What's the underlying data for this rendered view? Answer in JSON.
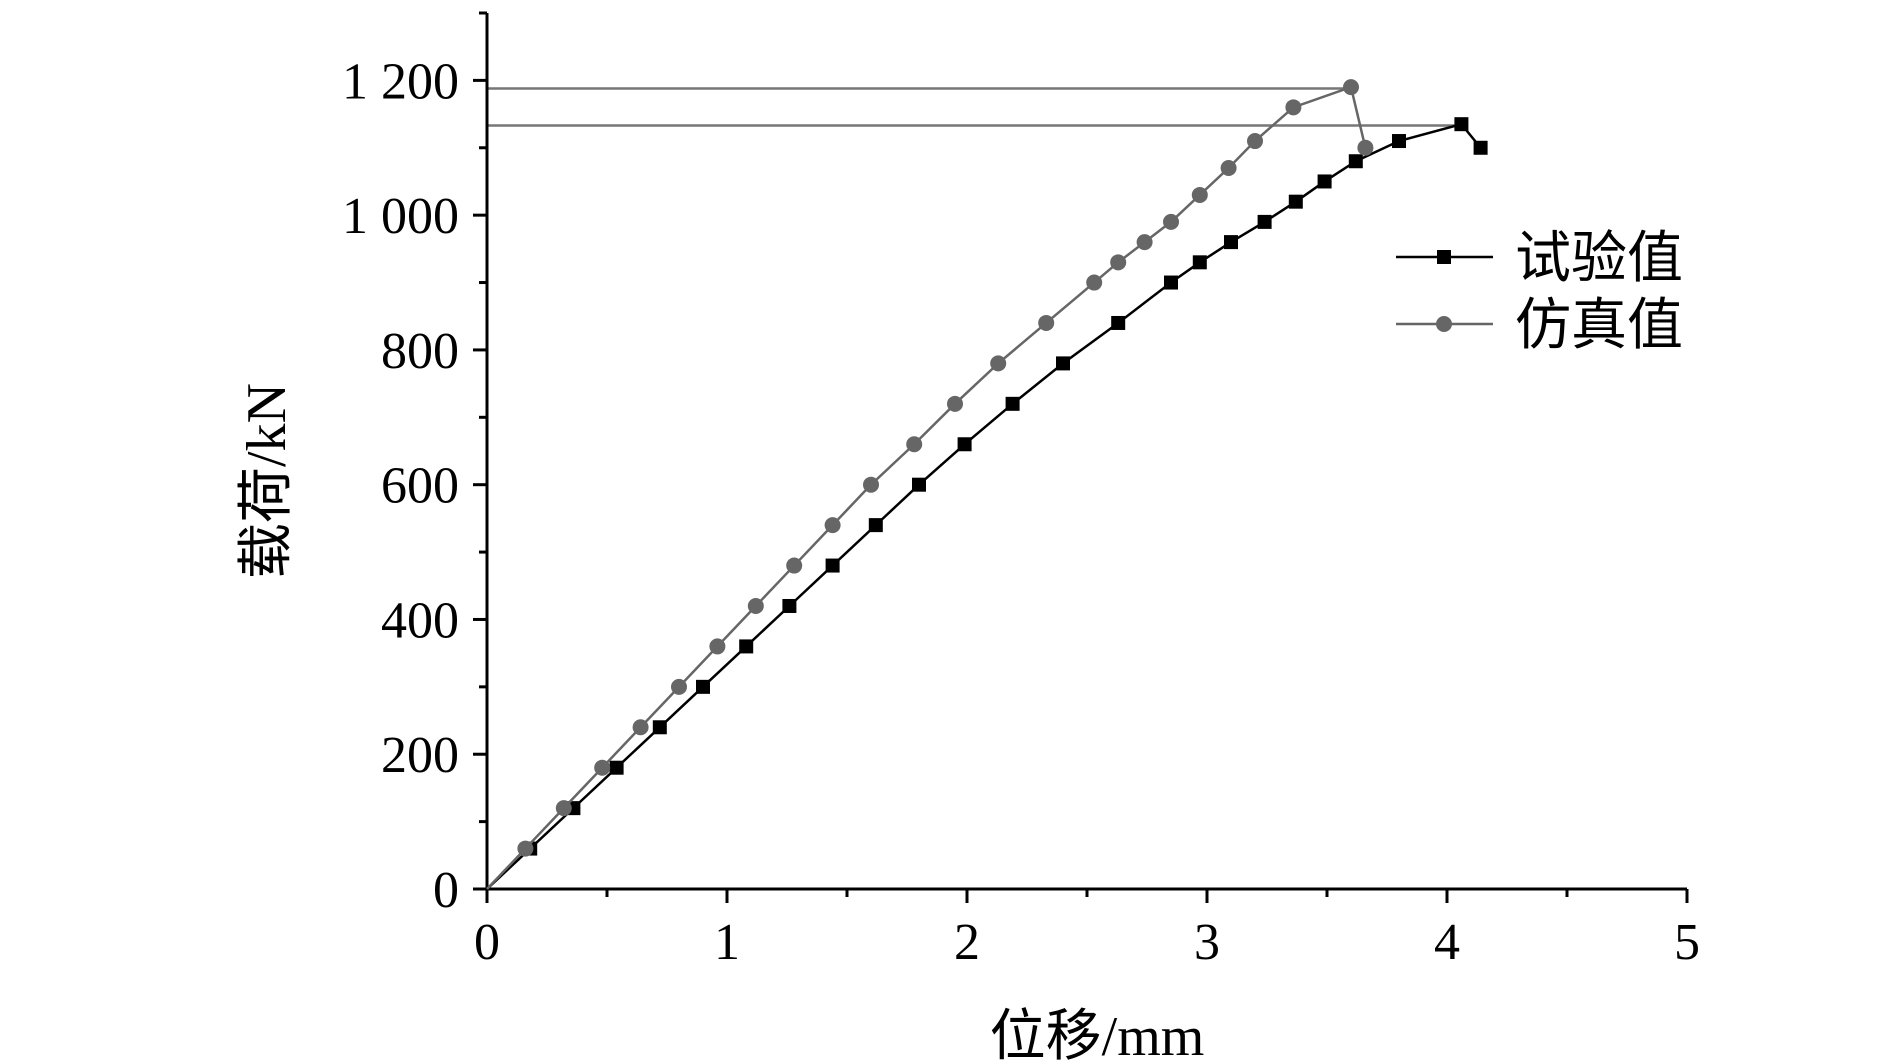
{
  "chart_data": {
    "type": "line",
    "xlabel": "位移/mm",
    "ylabel": "载荷/kN",
    "xlim": [
      0,
      5
    ],
    "ylim": [
      0,
      1300
    ],
    "xticks": [
      0,
      1,
      2,
      3,
      4,
      5
    ],
    "xtick_labels": [
      "0",
      "1",
      "2",
      "3",
      "4",
      "5"
    ],
    "yticks": [
      0,
      200,
      400,
      600,
      800,
      1000,
      1200
    ],
    "ytick_labels": [
      "0",
      "200",
      "400",
      "600",
      "800",
      "1 000",
      "1 200"
    ],
    "grid": false,
    "legend_position": "right",
    "reference_lines": [
      {
        "y": 1188,
        "x_end": 3.6
      },
      {
        "y": 1133,
        "x_end": 4.07
      }
    ],
    "series": [
      {
        "name": "试验值",
        "marker": "square",
        "color": "#000000",
        "x": [
          0,
          0.18,
          0.36,
          0.54,
          0.72,
          0.9,
          1.08,
          1.26,
          1.44,
          1.62,
          1.8,
          1.99,
          2.19,
          2.4,
          2.63,
          2.85,
          2.97,
          3.1,
          3.24,
          3.37,
          3.49,
          3.62,
          3.8,
          4.06,
          4.14
        ],
        "y": [
          0,
          60,
          120,
          180,
          240,
          300,
          360,
          420,
          480,
          540,
          600,
          660,
          720,
          780,
          840,
          900,
          930,
          960,
          990,
          1020,
          1050,
          1080,
          1110,
          1135,
          1100
        ]
      },
      {
        "name": "仿真值",
        "marker": "circle",
        "color": "#666666",
        "x": [
          0,
          0.16,
          0.32,
          0.48,
          0.64,
          0.8,
          0.96,
          1.12,
          1.28,
          1.44,
          1.6,
          1.78,
          1.95,
          2.13,
          2.33,
          2.53,
          2.63,
          2.74,
          2.85,
          2.97,
          3.09,
          3.2,
          3.36,
          3.6,
          3.66
        ],
        "y": [
          0,
          60,
          120,
          180,
          240,
          300,
          360,
          420,
          480,
          540,
          600,
          660,
          720,
          780,
          840,
          900,
          930,
          960,
          990,
          1030,
          1070,
          1110,
          1160,
          1190,
          1100
        ]
      }
    ]
  }
}
